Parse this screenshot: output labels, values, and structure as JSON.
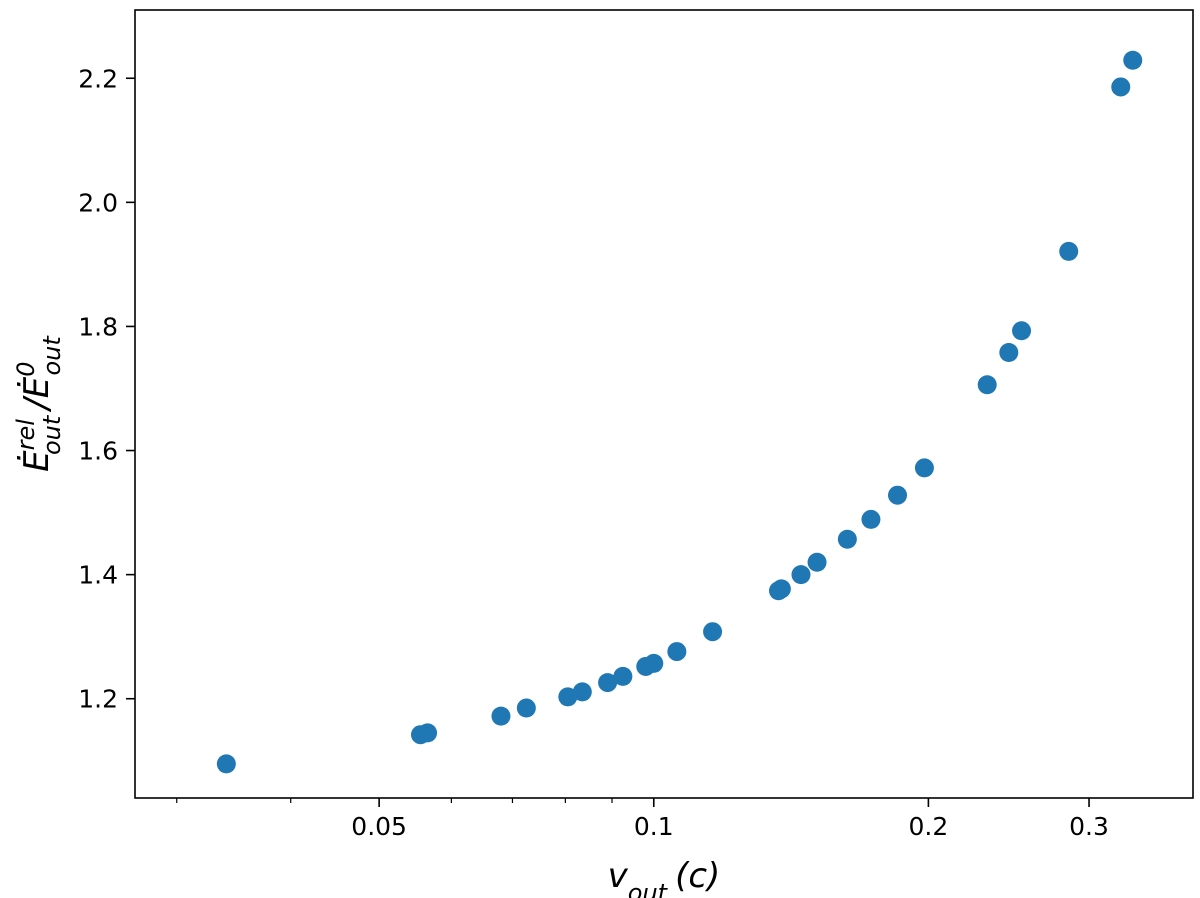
{
  "chart_data": {
    "type": "scatter",
    "x_scale": "log",
    "xlim": [
      0.027,
      0.39
    ],
    "ylim": [
      1.04,
      2.31
    ],
    "xlabel": "v_out (c)",
    "ylabel": "Ė_out^rel /Ė_out^0",
    "x_ticks": [
      {
        "value": 0.05,
        "label": "0.05"
      },
      {
        "value": 0.1,
        "label": "0.1"
      },
      {
        "value": 0.2,
        "label": "0.2"
      },
      {
        "value": 0.3,
        "label": "0.3"
      }
    ],
    "x_minor_ticks": [
      0.03,
      0.04,
      0.06,
      0.07,
      0.08,
      0.09
    ],
    "y_ticks": [
      {
        "value": 1.2,
        "label": "1.2"
      },
      {
        "value": 1.4,
        "label": "1.4"
      },
      {
        "value": 1.6,
        "label": "1.6"
      },
      {
        "value": 1.8,
        "label": "1.8"
      },
      {
        "value": 2.0,
        "label": "2.0"
      },
      {
        "value": 2.2,
        "label": "2.2"
      }
    ],
    "grid": false,
    "marker_color": "#1f77b4",
    "points": [
      {
        "x": 0.034,
        "y": 1.095
      },
      {
        "x": 0.0555,
        "y": 1.142
      },
      {
        "x": 0.0565,
        "y": 1.145
      },
      {
        "x": 0.068,
        "y": 1.172
      },
      {
        "x": 0.0725,
        "y": 1.185
      },
      {
        "x": 0.0805,
        "y": 1.203
      },
      {
        "x": 0.0835,
        "y": 1.211
      },
      {
        "x": 0.089,
        "y": 1.226
      },
      {
        "x": 0.0925,
        "y": 1.236
      },
      {
        "x": 0.098,
        "y": 1.252
      },
      {
        "x": 0.1,
        "y": 1.257
      },
      {
        "x": 0.106,
        "y": 1.276
      },
      {
        "x": 0.116,
        "y": 1.308
      },
      {
        "x": 0.137,
        "y": 1.374
      },
      {
        "x": 0.138,
        "y": 1.377
      },
      {
        "x": 0.145,
        "y": 1.4
      },
      {
        "x": 0.151,
        "y": 1.42
      },
      {
        "x": 0.163,
        "y": 1.457
      },
      {
        "x": 0.173,
        "y": 1.489
      },
      {
        "x": 0.185,
        "y": 1.528
      },
      {
        "x": 0.198,
        "y": 1.572
      },
      {
        "x": 0.232,
        "y": 1.706
      },
      {
        "x": 0.245,
        "y": 1.758
      },
      {
        "x": 0.253,
        "y": 1.793
      },
      {
        "x": 0.285,
        "y": 1.921
      },
      {
        "x": 0.325,
        "y": 2.186
      },
      {
        "x": 0.335,
        "y": 2.229
      }
    ]
  }
}
